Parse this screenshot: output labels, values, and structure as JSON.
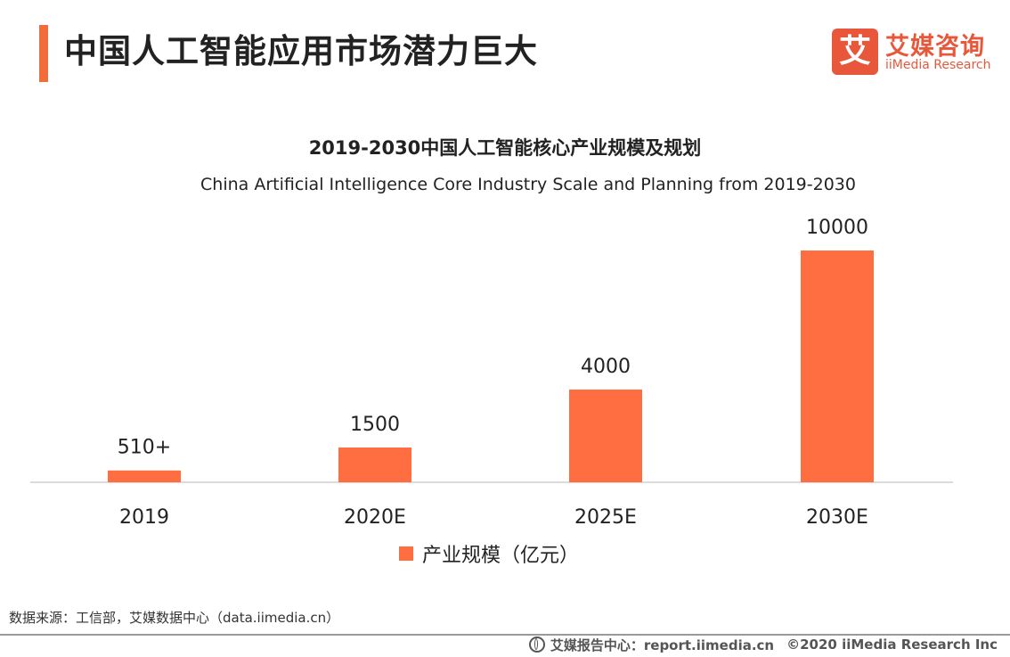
{
  "header": {
    "title": "中国人工智能应用市场潜力巨大",
    "accent_color": "#F26B3A"
  },
  "logo": {
    "mark": "艾",
    "name_cn": "艾媒咨询",
    "name_en": "iiMedia Research",
    "color": "#E8573A"
  },
  "chart_data": {
    "type": "bar",
    "title": "2019-2030中国人工智能核心产业规模及规划",
    "subtitle": "China Artificial Intelligence Core Industry Scale and Planning from 2019-2030",
    "categories": [
      "2019",
      "2020E",
      "2025E",
      "2030E"
    ],
    "series": [
      {
        "name": "产业规模（亿元）",
        "values": [
          510,
          1500,
          4000,
          10000
        ],
        "labels": [
          "510+",
          "1500",
          "4000",
          "10000"
        ],
        "color": "#FF6E40"
      }
    ],
    "ylim": [
      0,
      10000
    ],
    "grid": false,
    "legend": "bottom-center"
  },
  "source": "数据来源：工信部，艾媒数据中心（data.iimedia.cn）",
  "footer": {
    "report": "艾媒报告中心：report.iimedia.cn",
    "copyright": "©2020  iiMedia Research  Inc"
  }
}
